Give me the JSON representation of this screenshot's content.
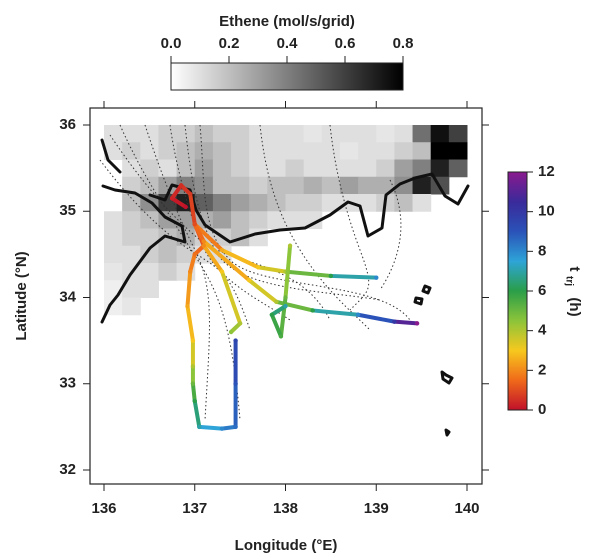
{
  "chart_data": {
    "type": "map",
    "xlabel": "Longitude (°E)",
    "ylabel": "Latitude (°N)",
    "xlim": [
      136,
      140
    ],
    "xticks": [
      136,
      137,
      138,
      139,
      140
    ],
    "ylim": [
      32,
      36
    ],
    "yticks": [
      32,
      33,
      34,
      35,
      36
    ],
    "emission": {
      "title": "Ethene (mol/s/grid)",
      "lim": [
        0,
        0.8
      ],
      "ticks": [
        {
          "value": 0,
          "label": "0.0"
        },
        {
          "value": 0.2,
          "label": "0.2"
        },
        {
          "value": 0.4,
          "label": "0.4"
        },
        {
          "value": 0.6,
          "label": "0.6"
        },
        {
          "value": 0.8,
          "label": "0.8"
        }
      ],
      "colors": [
        "#ffffff",
        "#000000"
      ],
      "lon": [
        136.0,
        136.2,
        136.4,
        136.6,
        136.8,
        137.0,
        137.2,
        137.4,
        137.6,
        137.8,
        138.0,
        138.2,
        138.4,
        138.6,
        138.8,
        139.0,
        139.2,
        139.4,
        139.6,
        139.8
      ],
      "lat": [
        35.8,
        35.6,
        35.4,
        35.2,
        35.0,
        34.8,
        34.6,
        34.4,
        34.2,
        34.0,
        33.8
      ],
      "values": [
        [
          0.1,
          0.1,
          0.1,
          0.15,
          0.15,
          0.2,
          0.15,
          0.15,
          0.1,
          0.1,
          0.1,
          0.08,
          0.1,
          0.1,
          0.1,
          0.08,
          0.1,
          0.45,
          0.75,
          0.6
        ],
        [
          0.1,
          0.15,
          0.1,
          0.15,
          0.2,
          0.25,
          0.2,
          0.15,
          0.1,
          0.1,
          0.1,
          0.1,
          0.1,
          0.08,
          0.1,
          0.1,
          0.15,
          0.2,
          0.8,
          0.8
        ],
        [
          null,
          0.1,
          0.15,
          0.1,
          0.2,
          0.3,
          0.2,
          0.15,
          0.1,
          0.1,
          0.15,
          0.1,
          0.1,
          0.1,
          0.1,
          0.15,
          0.3,
          0.4,
          0.7,
          0.5
        ],
        [
          null,
          0.15,
          0.2,
          0.3,
          0.4,
          0.35,
          0.2,
          0.2,
          0.15,
          0.2,
          0.2,
          0.25,
          0.2,
          0.3,
          0.25,
          0.25,
          0.35,
          0.7,
          0.55,
          null
        ],
        [
          null,
          0.2,
          0.35,
          0.6,
          0.7,
          0.5,
          0.4,
          0.3,
          0.25,
          0.2,
          0.15,
          0.15,
          0.1,
          0.1,
          0.1,
          0.15,
          0.2,
          0.1,
          null,
          null
        ],
        [
          0.1,
          0.15,
          0.2,
          0.3,
          0.3,
          0.25,
          0.3,
          0.2,
          0.15,
          0.1,
          0.1,
          0.1,
          null,
          null,
          null,
          null,
          null,
          null,
          null,
          null
        ],
        [
          0.1,
          0.15,
          0.15,
          0.2,
          0.25,
          0.15,
          0.15,
          0.2,
          0.1,
          null,
          null,
          null,
          null,
          null,
          null,
          null,
          null,
          null,
          null,
          null
        ],
        [
          0.1,
          0.1,
          0.15,
          0.2,
          0.15,
          0.1,
          0.1,
          null,
          null,
          null,
          null,
          null,
          null,
          null,
          null,
          null,
          null,
          null,
          null,
          null
        ],
        [
          0.08,
          0.1,
          0.1,
          0.15,
          0.1,
          null,
          null,
          null,
          null,
          null,
          null,
          null,
          null,
          null,
          null,
          null,
          null,
          null,
          null,
          null
        ],
        [
          0.05,
          0.1,
          0.1,
          null,
          null,
          null,
          null,
          null,
          null,
          null,
          null,
          null,
          null,
          null,
          null,
          null,
          null,
          null,
          null,
          null
        ],
        [
          0.05,
          0.08,
          null,
          null,
          null,
          null,
          null,
          null,
          null,
          null,
          null,
          null,
          null,
          null,
          null,
          null,
          null,
          null,
          null,
          null
        ]
      ]
    },
    "trajectory_time": {
      "label": "t",
      "label_sub": "trj",
      "label_unit": "(h)",
      "lim": [
        0,
        12
      ],
      "ticks": [
        0,
        2,
        4,
        6,
        8,
        10,
        12
      ],
      "colors": [
        "#c0102a",
        "#f06a1a",
        "#f6c81e",
        "#8cc43a",
        "#2a9e48",
        "#2ea4d8",
        "#2a52b8",
        "#3a2a9a",
        "#8a1a8e"
      ]
    },
    "tracks": [
      {
        "lon": [
          136.9,
          136.75,
          136.85,
          136.95,
          137.0,
          137.1,
          137.0,
          136.95,
          136.92,
          136.98,
          136.98,
          136.98,
          137.0,
          137.05,
          137.3,
          137.45,
          137.45,
          137.45
        ],
        "lat": [
          35.05,
          35.15,
          35.3,
          35.2,
          34.85,
          34.6,
          34.5,
          34.3,
          33.9,
          33.5,
          33.2,
          33.0,
          32.8,
          32.5,
          32.48,
          32.5,
          33.0,
          33.5
        ],
        "t": [
          0,
          0.3,
          0.5,
          0.7,
          1,
          1.3,
          1.6,
          2,
          2.5,
          3,
          4,
          5,
          6,
          7,
          8,
          8.5,
          9,
          9.5
        ]
      },
      {
        "lon": [
          137.0,
          137.3,
          137.7,
          138.0,
          138.5,
          139.0
        ],
        "lat": [
          34.85,
          34.55,
          34.35,
          34.3,
          34.25,
          34.23
        ],
        "t": [
          1,
          2.5,
          3,
          4,
          6,
          8
        ]
      },
      {
        "lon": [
          137.0,
          137.1,
          137.6,
          137.9,
          138.3,
          138.8,
          139.2,
          139.45
        ],
        "lat": [
          34.85,
          34.65,
          34.2,
          33.95,
          33.85,
          33.8,
          33.72,
          33.7
        ],
        "t": [
          1,
          2,
          3,
          4,
          6,
          8,
          10,
          12
        ]
      },
      {
        "lon": [
          138.05,
          138.0,
          137.95,
          137.85,
          138.0
        ],
        "lat": [
          34.6,
          34.0,
          33.55,
          33.8,
          33.9
        ],
        "t": [
          4,
          5,
          5.5,
          6,
          7
        ]
      },
      {
        "lon": [
          137.1,
          137.3,
          137.5,
          137.4
        ],
        "lat": [
          34.6,
          34.3,
          33.7,
          33.6
        ],
        "t": [
          2,
          3,
          4,
          4.5
        ]
      }
    ]
  }
}
